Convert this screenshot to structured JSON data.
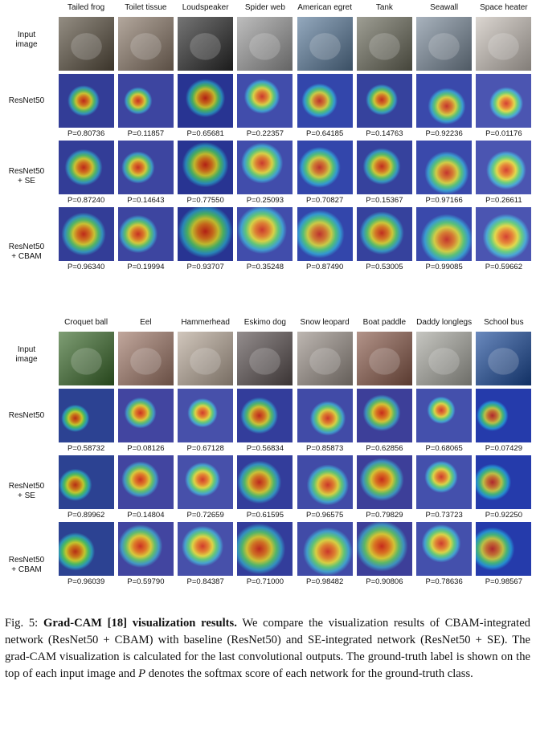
{
  "panels": [
    {
      "row_labels": {
        "input": [
          "Input",
          "image"
        ],
        "resnet": [
          "ResNet50"
        ],
        "se": [
          "ResNet50",
          "+ SE"
        ],
        "cbam": [
          "ResNet50",
          "+ CBAM"
        ]
      },
      "classes": [
        "Tailed frog",
        "Toilet tissue",
        "Loudspeaker",
        "Spider web",
        "American egret",
        "Tank",
        "Seawall",
        "Space heater"
      ],
      "scores": {
        "resnet": [
          "P=0.80736",
          "P=0.11857",
          "P=0.65681",
          "P=0.22357",
          "P=0.64185",
          "P=0.14763",
          "P=0.92236",
          "P=0.01176"
        ],
        "se": [
          "P=0.87240",
          "P=0.14643",
          "P=0.77550",
          "P=0.25093",
          "P=0.70827",
          "P=0.15367",
          "P=0.97166",
          "P=0.26611"
        ],
        "cbam": [
          "P=0.96340",
          "P=0.19994",
          "P=0.93707",
          "P=0.35248",
          "P=0.87490",
          "P=0.53005",
          "P=0.99085",
          "P=0.59662"
        ]
      }
    },
    {
      "row_labels": {
        "input": [
          "Input",
          "image"
        ],
        "resnet": [
          "ResNet50"
        ],
        "se": [
          "ResNet50",
          "+ SE"
        ],
        "cbam": [
          "ResNet50",
          "+ CBAM"
        ]
      },
      "classes": [
        "Croquet ball",
        "Eel",
        "Hammerhead",
        "Eskimo dog",
        "Snow leopard",
        "Boat paddle",
        "Daddy longlegs",
        "School bus"
      ],
      "scores": {
        "resnet": [
          "P=0.58732",
          "P=0.08126",
          "P=0.67128",
          "P=0.56834",
          "P=0.85873",
          "P=0.62856",
          "P=0.68065",
          "P=0.07429"
        ],
        "se": [
          "P=0.89962",
          "P=0.14804",
          "P=0.72659",
          "P=0.61595",
          "P=0.96575",
          "P=0.79829",
          "P=0.73723",
          "P=0.92250"
        ],
        "cbam": [
          "P=0.96039",
          "P=0.59790",
          "P=0.84387",
          "P=0.71000",
          "P=0.98482",
          "P=0.90806",
          "P=0.78636",
          "P=0.98567"
        ]
      }
    }
  ],
  "caption": {
    "fig_label": "Fig. 5:",
    "bold_title": "Grad-CAM [18] visualization results.",
    "text_before_p": "We compare the visualization results of CBAM-integrated network (ResNet50 + CBAM) with baseline (ResNet50) and SE-integrated network (ResNet50 + SE). The grad-CAM visualization is calculated for the last convolutional outputs. The ground-truth label is shown on the top of each input image and",
    "p_symbol": "P",
    "text_after_p": "denotes the softmax score of each network for the ground-truth class."
  },
  "image_colors": [
    "#5a5040",
    "#8a7868",
    "#2a2a2a",
    "#9a9a9a",
    "#5a7a9a",
    "#6a6a5a",
    "#7a8a9a",
    "#c8c0b8",
    "#3a6a2a",
    "#a07868",
    "#b8a898",
    "#5a5050",
    "#9a9088",
    "#8a5a4a",
    "#a8a8a0",
    "#1a4a9a"
  ]
}
